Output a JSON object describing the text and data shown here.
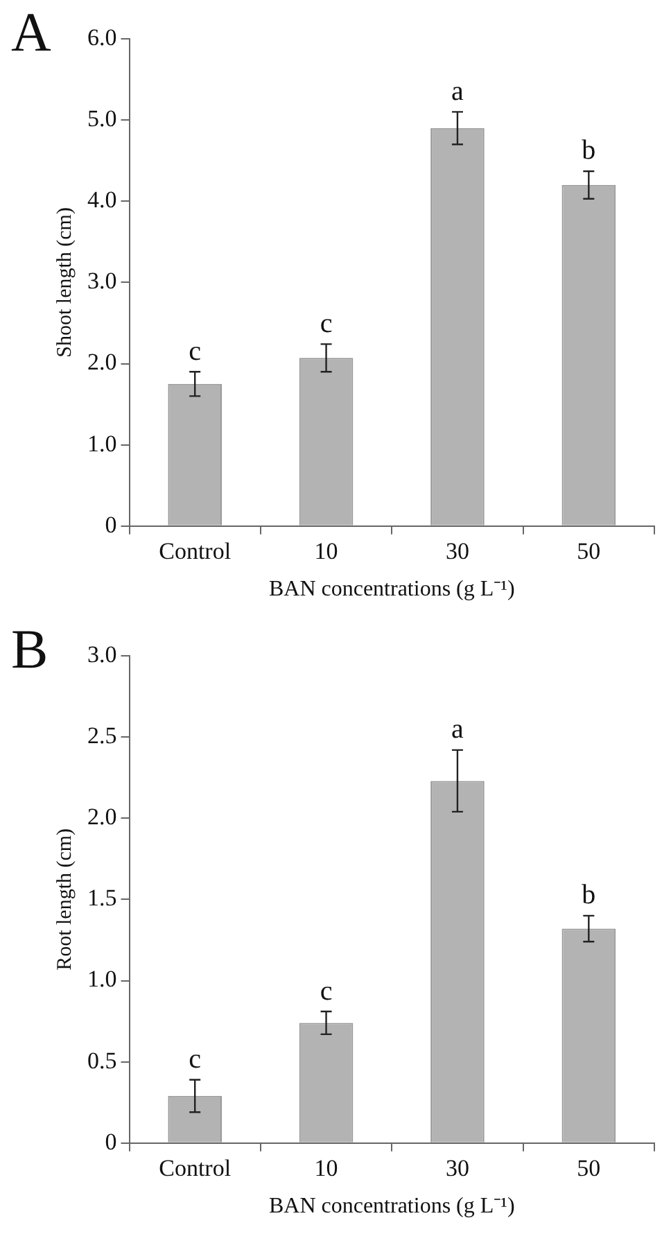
{
  "chart_data": [
    {
      "type": "bar",
      "title": "A",
      "xlabel": "BAN concentrations (g L⁻¹)",
      "ylabel": "Shoot length (cm)",
      "categories": [
        "Control",
        "10",
        "30",
        "50"
      ],
      "values": [
        1.75,
        2.07,
        4.9,
        4.2
      ],
      "errors": [
        0.15,
        0.17,
        0.2,
        0.17
      ],
      "color": "#b3b3b3",
      "ylim": [
        0,
        6
      ],
      "yticks": [
        0,
        {
          "value": 1,
          "label": "1.0"
        },
        {
          "value": 2,
          "label": "2.0"
        },
        {
          "value": 3,
          "label": "3.0"
        },
        {
          "value": 4,
          "label": "4.0"
        },
        {
          "value": 5,
          "label": "5.0"
        },
        {
          "value": 6,
          "label": "6.0"
        }
      ],
      "grid": false,
      "annotations": [
        {
          "text": "c",
          "x": "Control",
          "y": 1.75
        },
        {
          "text": "c",
          "x": "10",
          "y": 2.07
        },
        {
          "text": "a",
          "x": "30",
          "y": 4.9
        },
        {
          "text": "b",
          "x": "50",
          "y": 4.2
        }
      ]
    },
    {
      "type": "bar",
      "title": "B",
      "xlabel": "BAN concentrations (g L⁻¹)",
      "ylabel": "Root length (cm)",
      "categories": [
        "Control",
        "10",
        "30",
        "50"
      ],
      "values": [
        0.29,
        0.74,
        2.23,
        1.32
      ],
      "errors": [
        0.1,
        0.07,
        0.19,
        0.08
      ],
      "color": "#b3b3b3",
      "ylim": [
        0,
        3
      ],
      "yticks": [
        0,
        0.5,
        {
          "value": 1,
          "label": "1.0"
        },
        1.5,
        {
          "value": 2,
          "label": "2.0"
        },
        2.5,
        {
          "value": 3,
          "label": "3.0"
        }
      ],
      "grid": false,
      "annotations": [
        {
          "text": "c",
          "x": "Control",
          "y": 0.29
        },
        {
          "text": "c",
          "x": "10",
          "y": 0.74
        },
        {
          "text": "a",
          "x": "30",
          "y": 2.23
        },
        {
          "text": "b",
          "x": "50",
          "y": 1.32
        }
      ]
    }
  ]
}
